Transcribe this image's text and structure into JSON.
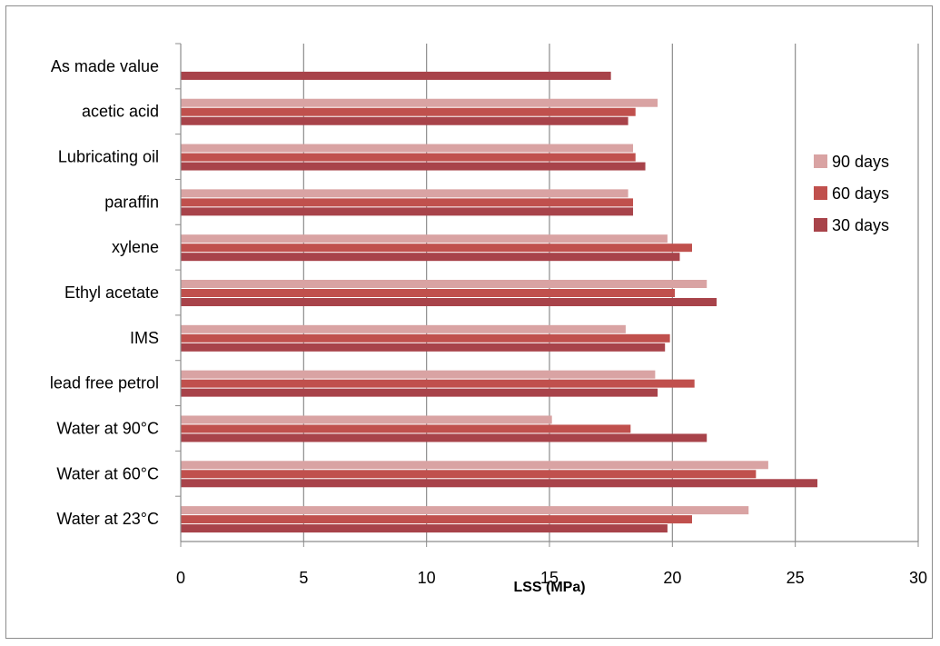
{
  "chart_data": {
    "type": "bar",
    "orientation": "horizontal",
    "categories": [
      "Water at 23°C",
      "Water at 60°C",
      "Water at 90°C",
      "lead free petrol",
      "IMS",
      "Ethyl acetate",
      "xylene",
      "paraffin",
      "Lubricating oil",
      "acetic acid",
      "As made value"
    ],
    "series": [
      {
        "name": "90 days",
        "color": "#d9a3a3",
        "values": [
          23.1,
          23.9,
          15.1,
          19.3,
          18.1,
          21.4,
          19.8,
          18.2,
          18.4,
          19.4,
          null
        ]
      },
      {
        "name": "60 days",
        "color": "#c0504d",
        "values": [
          20.8,
          23.4,
          18.3,
          20.9,
          19.9,
          20.1,
          20.8,
          18.4,
          18.5,
          18.5,
          null
        ]
      },
      {
        "name": "30 days",
        "color": "#a8434a",
        "values": [
          19.8,
          25.9,
          21.4,
          19.4,
          19.7,
          21.8,
          20.3,
          18.4,
          18.9,
          18.2,
          17.5
        ]
      }
    ],
    "title": "",
    "xlabel": "LSS (MPa)",
    "ylabel": "",
    "xlim": [
      0,
      30
    ],
    "x_ticks": [
      "0",
      "5",
      "10",
      "15",
      "20",
      "25",
      "30"
    ],
    "grid": "vertical major gridlines",
    "legend_position": "right"
  }
}
